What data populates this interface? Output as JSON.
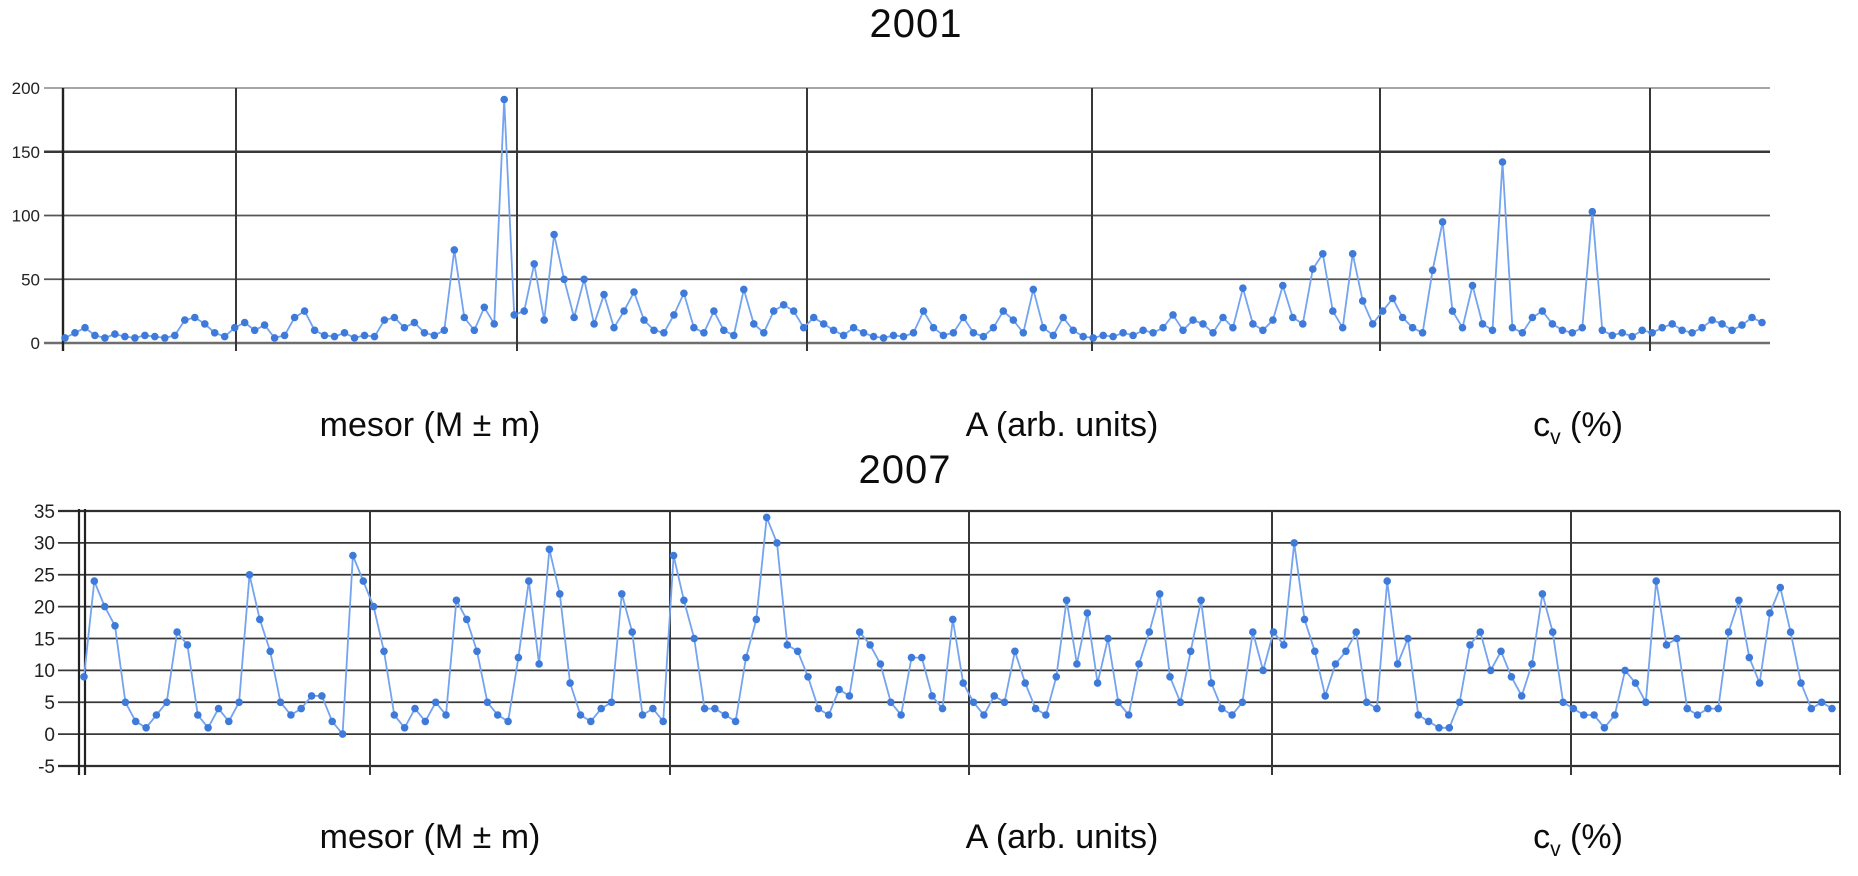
{
  "colors": {
    "series_line": "#74a3ef",
    "series_marker": "#3d7ad9",
    "grid_dark": "#383838",
    "grid_medium": "#555555",
    "grid_light": "#999999",
    "axis": "#222222",
    "baseline": "#6e6e6e",
    "tick_text": "#222222",
    "title_text": "#0c0c0c",
    "background": "#ffffff"
  },
  "section_label_parts": [
    {
      "main": "mesor (M ± m)",
      "sub": "",
      "post": ""
    },
    {
      "main": "A (arb. units)",
      "sub": "",
      "post": ""
    },
    {
      "main": "c",
      "sub": "v",
      "post": " (%)"
    }
  ],
  "chart_data": [
    {
      "type": "line",
      "title": "2001",
      "xlabel": "",
      "ylabel": "",
      "ylim": [
        0,
        200
      ],
      "y_ticks": [
        200,
        150,
        100,
        50,
        0
      ],
      "grid": true,
      "legend": false,
      "markers": true,
      "section_labels": [
        "mesor (M ± m)",
        "A (arb. units)",
        "cv (%)"
      ],
      "values": [
        4,
        8,
        12,
        6,
        4,
        7,
        5,
        4,
        6,
        5,
        4,
        6,
        18,
        20,
        15,
        8,
        5,
        12,
        16,
        10,
        14,
        4,
        6,
        20,
        25,
        10,
        6,
        5,
        8,
        4,
        6,
        5,
        18,
        20,
        12,
        16,
        8,
        6,
        10,
        73,
        20,
        10,
        28,
        15,
        191,
        22,
        25,
        62,
        18,
        85,
        50,
        20,
        50,
        15,
        38,
        12,
        25,
        40,
        18,
        10,
        8,
        22,
        39,
        12,
        8,
        25,
        10,
        6,
        42,
        15,
        8,
        25,
        30,
        25,
        12,
        20,
        15,
        10,
        6,
        12,
        8,
        5,
        4,
        6,
        5,
        8,
        25,
        12,
        6,
        8,
        20,
        8,
        5,
        12,
        25,
        18,
        8,
        42,
        12,
        6,
        20,
        10,
        5,
        4,
        6,
        5,
        8,
        6,
        10,
        8,
        12,
        22,
        10,
        18,
        15,
        8,
        20,
        12,
        43,
        15,
        10,
        18,
        45,
        20,
        15,
        58,
        70,
        25,
        12,
        70,
        33,
        15,
        25,
        35,
        20,
        12,
        8,
        57,
        95,
        25,
        12,
        45,
        15,
        10,
        142,
        12,
        8,
        20,
        25,
        15,
        10,
        8,
        12,
        103,
        10,
        6,
        8,
        5,
        10,
        8,
        12,
        15,
        10,
        8,
        12,
        18,
        15,
        10,
        14,
        20,
        16
      ]
    },
    {
      "type": "line",
      "title": "2007",
      "xlabel": "",
      "ylabel": "",
      "ylim": [
        -5,
        35
      ],
      "y_ticks": [
        35,
        30,
        25,
        20,
        15,
        10,
        5,
        0,
        -5
      ],
      "grid": true,
      "legend": false,
      "markers": true,
      "section_labels": [
        "mesor (M ± m)",
        "A (arb. units)",
        "cv (%)"
      ],
      "values": [
        9,
        24,
        20,
        17,
        5,
        2,
        1,
        3,
        5,
        16,
        14,
        3,
        1,
        4,
        2,
        5,
        25,
        18,
        13,
        5,
        3,
        4,
        6,
        6,
        2,
        0,
        28,
        24,
        20,
        13,
        3,
        1,
        4,
        2,
        5,
        3,
        21,
        18,
        13,
        5,
        3,
        2,
        12,
        24,
        11,
        29,
        22,
        8,
        3,
        2,
        4,
        5,
        22,
        16,
        3,
        4,
        2,
        28,
        21,
        15,
        4,
        4,
        3,
        2,
        12,
        18,
        34,
        30,
        14,
        13,
        9,
        4,
        3,
        7,
        6,
        16,
        14,
        11,
        5,
        3,
        12,
        12,
        6,
        4,
        18,
        8,
        5,
        3,
        6,
        5,
        13,
        8,
        4,
        3,
        9,
        21,
        11,
        19,
        8,
        15,
        5,
        3,
        11,
        16,
        22,
        9,
        5,
        13,
        21,
        8,
        4,
        3,
        5,
        16,
        10,
        16,
        14,
        30,
        18,
        13,
        6,
        11,
        13,
        16,
        5,
        4,
        24,
        11,
        15,
        3,
        2,
        1,
        1,
        5,
        14,
        16,
        10,
        13,
        9,
        6,
        11,
        22,
        16,
        5,
        4,
        3,
        3,
        1,
        3,
        10,
        8,
        5,
        24,
        14,
        15,
        4,
        3,
        4,
        4,
        16,
        21,
        12,
        8,
        19,
        23,
        16,
        8,
        4,
        5,
        4
      ]
    }
  ]
}
